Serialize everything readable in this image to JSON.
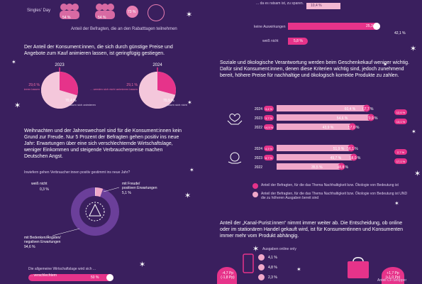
{
  "colors": {
    "background": "#3a1f5e",
    "pink": "#e6338a",
    "light_pink": "#f0a8c9",
    "dark_purple": "#2a1548",
    "white": "#ffffff"
  },
  "left": {
    "singles_day_label": "Singles' Day",
    "singles_icons_values": [
      "54 %",
      "54 %",
      "73 %"
    ],
    "rabatt_caption": "Anteil der Befragten, die an den Rabatttagen teilnehmen",
    "para_preise": "Der Anteil der Konsument:innen, die sich durch günstige Preise und Angebote zum Kauf animieren lassen, ist geringfügig gestiegen.",
    "para_weihnachten": "Weihnachten und der Jahreswechsel sind für die Konsument:innen kein Grund zur Freude. Nur 5 Prozent der Befragten gehen positiv ins neue Jahr: Erwartungen über eine sich verschlechternde Wirtschaftslage, weniger Einkommen und steigende Verbraucherpreise machen Deutschen Angst.",
    "question": "Inwiefern gehen Verbraucher:innen positiv gestimmt ins neue Jahr?",
    "wirtschaft_caption": "Die allgemeine Wirtschaftslage wird sich ...",
    "verschlechtern_label": "... verschlechtern",
    "verschlechtern_value": "50 %"
  },
  "right": {
    "top_bar_label": "... da es ratsam ist, zu sparen.",
    "top_bar_value": "10,4 %",
    "keine_label": "keine Auswirkungen",
    "keine_value": "25,3 %",
    "weiss_label": "weiß nicht",
    "weiss_value": "5,8 %",
    "side_value": "42,1 %",
    "para_sozial": "Soziale und ökologische Verantwortung werden beim Geschenkekauf weniger wichtig. Dafür sind Konsument:innen, denen diese Kriterien wichtig sind, jedoch zunehmend bereit, höhere Preise für nachhaltige und ökologisch korrekte Produkte zu zahlen.",
    "legend_1": "Anteil der Befragten, für die das Thema Nachhaltigkeit bzw. Ökologie von Bedeutung ist",
    "legend_2": "Anteil der Befragten, für die das Thema Nachhaltigkeit bzw. Ökologie von Bedeutung ist UND die zu höheren Ausgaben bereit sind",
    "para_kanal": "Anteil der „Kanal-Purist:innen“ nimmt immer weiter ab. Die Entscheidung, ob online oder im stationären Handel gekauft wird, ist für Konsumentinnen und Konsumenten immer mehr vom Produkt abhängig.",
    "ausgaben_online_label": "Ausgaben online only",
    "online_values": [
      "4,1 %",
      "4,8 %",
      "2,3 %"
    ],
    "badge_left": "-4,7 Pp (-1,8 Pp)",
    "badge_right": "+1,7 Pp (+1,0 Pp)",
    "shopper_label": "Anteil CF-Shopper"
  },
  "chart_data": [
    {
      "type": "pie",
      "title": "2023",
      "slices": [
        {
          "label": "29,6 % ... werden sich nicht animieren lassen",
          "value": 29.6
        },
        {
          "label": "70,4 % ... lassen sich animieren",
          "value": 70.4
        }
      ]
    },
    {
      "type": "pie",
      "title": "2024",
      "slices": [
        {
          "label": "29,1 % ... werden sich nicht animieren lassen",
          "value": 29.1
        },
        {
          "label": "70,9 % ... lassen sich nicht Angeboten",
          "value": 70.9
        }
      ]
    },
    {
      "type": "pie",
      "title": "",
      "slices": [
        {
          "label": "weiß nicht",
          "display": "0,3 %",
          "value": 0.3
        },
        {
          "label": "mit Freude/ positiven Erwartungen",
          "display": "5,1 %",
          "value": 5.1
        },
        {
          "label": "mit Bedenken/Ängsten/ negativen Erwartungen",
          "display": "94,6 %",
          "value": 94.6
        }
      ]
    },
    {
      "type": "bar",
      "title": "",
      "categories": [
        "2024",
        "2023",
        "2022"
      ],
      "series": [
        {
          "values": [
            60.4,
            54.6,
            43.9
          ],
          "labels": [
            "60,4 %",
            "54,6 %",
            "43,9 %"
          ]
        },
        {
          "values": [
            67.7,
            70.9,
            57.0
          ],
          "labels": [
            "67,7 %",
            "70,9 %",
            "57,0 %"
          ]
        }
      ],
      "side_badges": [
        "3,4 %",
        "3,7 %",
        "14,5 %"
      ],
      "right_badges": [
        "12,6 %",
        "13,1 %"
      ]
    },
    {
      "type": "bar",
      "title": "",
      "categories": [
        "2024",
        "2023",
        "2022"
      ],
      "series": [
        {
          "values": [
            51.9,
            49.7,
            35.5
          ],
          "labels": [
            "51,9 %",
            "49,7 %",
            "35,5 %"
          ]
        },
        {
          "values": [
            56.1,
            58.0,
            48.8
          ],
          "labels": [
            "56,1 %",
            "58,0 %",
            "48,8 %"
          ]
        }
      ],
      "side_badges": [
        "4,3 %",
        "8,7 %"
      ],
      "right_badges": [
        "2,7 %",
        "17,1 %"
      ]
    }
  ]
}
